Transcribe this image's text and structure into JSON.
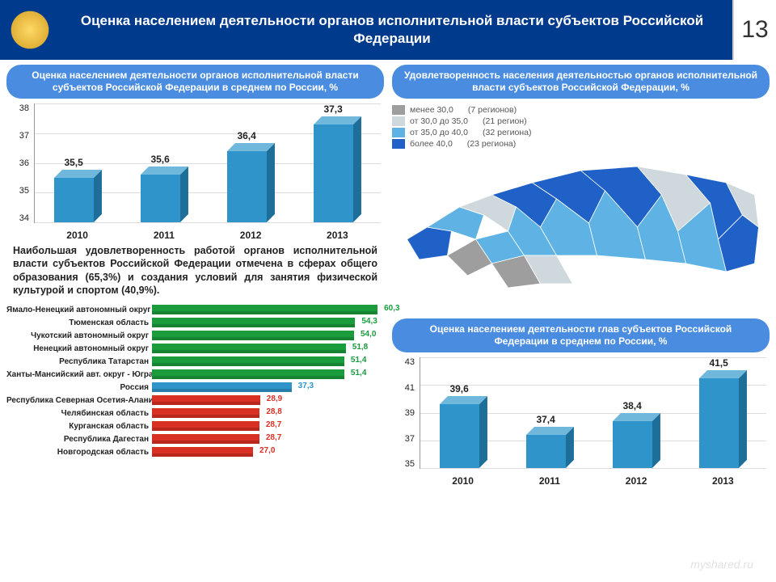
{
  "header": {
    "title": "Оценка населением деятельности органов исполнительной власти субъектов Российской Федерации",
    "page_number": "13"
  },
  "chart1": {
    "title": "Оценка населением деятельности органов исполнительной власти субъектов Российской Федерации в среднем по России, %",
    "type": "bar",
    "categories": [
      "2010",
      "2011",
      "2012",
      "2013"
    ],
    "values": [
      35.5,
      35.6,
      36.4,
      37.3
    ],
    "value_labels": [
      "35,5",
      "35,6",
      "36,4",
      "37,3"
    ],
    "ylim": [
      34,
      38
    ],
    "ytick_step": 1,
    "yticks": [
      "38",
      "37",
      "36",
      "35",
      "34"
    ],
    "bar_front": "#2e94c9",
    "bar_top": "#6fb8dc",
    "bar_side": "#1d6e99",
    "background": "#ffffff",
    "grid": "#dddddd"
  },
  "note": "Наибольшая удовлетворенность работой органов исполнительной власти субъектов Российской Федерации отмечена в сферах общего образования (65,3%) и создания условий для занятия физической культурой и спортом (40,9%).",
  "hbar": {
    "type": "bar-horizontal",
    "xmax": 62,
    "rows": [
      {
        "label": "Ямало-Ненецкий автономный округ",
        "value": 60.3,
        "vl": "60,3",
        "color": "#1a9c3d",
        "side": "#0f6b28"
      },
      {
        "label": "Тюменская область",
        "value": 54.3,
        "vl": "54,3",
        "color": "#1a9c3d",
        "side": "#0f6b28"
      },
      {
        "label": "Чукотский автономный округ",
        "value": 54.0,
        "vl": "54,0",
        "color": "#1a9c3d",
        "side": "#0f6b28"
      },
      {
        "label": "Ненецкий автономный округ",
        "value": 51.8,
        "vl": "51,8",
        "color": "#1a9c3d",
        "side": "#0f6b28"
      },
      {
        "label": "Республика Татарстан",
        "value": 51.4,
        "vl": "51,4",
        "color": "#1a9c3d",
        "side": "#0f6b28"
      },
      {
        "label": "Ханты-Мансийский авт. округ - Югра",
        "value": 51.4,
        "vl": "51,4",
        "color": "#1a9c3d",
        "side": "#0f6b28"
      },
      {
        "label": "Россия",
        "value": 37.3,
        "vl": "37,3",
        "color": "#2e94c9",
        "side": "#1d6e99"
      },
      {
        "label": "Республика Северная Осетия-Алания",
        "value": 28.9,
        "vl": "28,9",
        "color": "#d93025",
        "side": "#9a1f17"
      },
      {
        "label": "Челябинская область",
        "value": 28.8,
        "vl": "28,8",
        "color": "#d93025",
        "side": "#9a1f17"
      },
      {
        "label": "Курганская область",
        "value": 28.7,
        "vl": "28,7",
        "color": "#d93025",
        "side": "#9a1f17"
      },
      {
        "label": "Республика Дагестан",
        "value": 28.7,
        "vl": "28,7",
        "color": "#d93025",
        "side": "#9a1f17"
      },
      {
        "label": "Новгородская область",
        "value": 27.0,
        "vl": "27,0",
        "color": "#d93025",
        "side": "#9a1f17"
      }
    ]
  },
  "map": {
    "title": "Удовлетворенность населения деятельностью органов исполнительной власти субъектов Российской Федерации, %",
    "legend": [
      {
        "color": "#9e9e9e",
        "label": "менее 30,0",
        "count": "(7 регионов)"
      },
      {
        "color": "#cfd8dc",
        "label": "от 30,0 до 35,0",
        "count": "(21 регион)"
      },
      {
        "color": "#5eb3e4",
        "label": "от 35,0 до 40,0",
        "count": "(32 региона)"
      },
      {
        "color": "#1f61c7",
        "label": "более 40,0",
        "count": "(23 региона)"
      }
    ]
  },
  "chart2": {
    "title": "Оценка населением деятельности глав субъектов Российской Федерации в среднем по России, %",
    "type": "bar",
    "categories": [
      "2010",
      "2011",
      "2012",
      "2013"
    ],
    "values": [
      39.6,
      37.4,
      38.4,
      41.5
    ],
    "value_labels": [
      "39,6",
      "37,4",
      "38,4",
      "41,5"
    ],
    "ylim": [
      35,
      43
    ],
    "ytick_step": 2,
    "yticks": [
      "43",
      "41",
      "39",
      "37",
      "35"
    ],
    "bar_front": "#2e94c9",
    "bar_top": "#6fb8dc",
    "bar_side": "#1d6e99"
  },
  "watermark": "myshared.ru"
}
